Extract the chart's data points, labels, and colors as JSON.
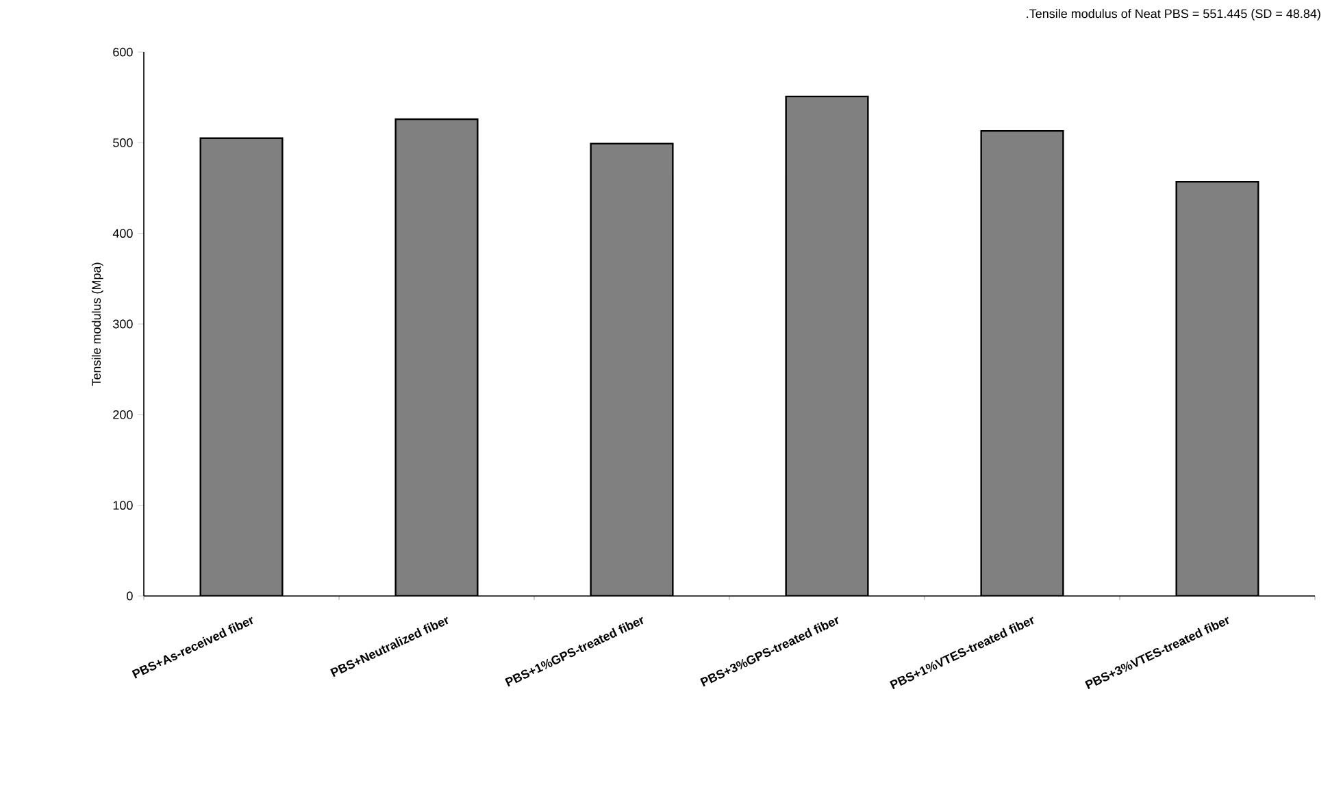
{
  "chart_data": {
    "type": "bar",
    "ylabel": "Tensile modulus (Mpa)",
    "annotations": [
      ".Tensile modulus of Neat PBS = 551.445 (SD = 48.84)"
    ],
    "categories": [
      "PBS+As-received fiber",
      "PBS+Neutralized fiber",
      "PBS+1%GPS-treated fiber",
      "PBS+3%GPS-treated fiber",
      "PBS+1%VTES-treated fiber",
      "PBS+3%VTES-treated fiber"
    ],
    "values": [
      505,
      526,
      499,
      551,
      513,
      457
    ],
    "color": "#808080",
    "ylim": [
      0,
      600
    ],
    "yticks": [
      0,
      100,
      200,
      300,
      400,
      500,
      600
    ],
    "grid": false
  }
}
